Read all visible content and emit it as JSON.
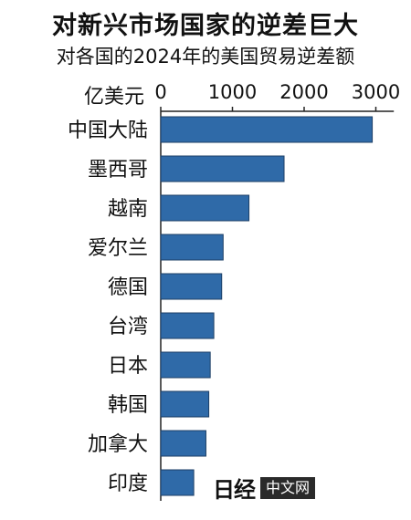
{
  "chart_data": {
    "type": "bar",
    "orientation": "horizontal",
    "title": "对新兴市场国家的逆差巨大",
    "subtitle": "对各国的2024年的美国贸易逆差额",
    "unit_label": "亿美元",
    "xlim": [
      0,
      3200
    ],
    "ticks": [
      0,
      1000,
      2000,
      3000
    ],
    "tick_labels": [
      "0",
      "1000",
      "2000",
      "3000"
    ],
    "categories": [
      "中国大陆",
      "墨西哥",
      "越南",
      "爱尔兰",
      "德国",
      "台湾",
      "日本",
      "韩国",
      "加拿大",
      "印度"
    ],
    "values": [
      2950,
      1720,
      1230,
      870,
      850,
      740,
      690,
      670,
      630,
      460
    ],
    "bar_color": "#2f6aa8",
    "grid": false
  },
  "logo": {
    "mark": "日经",
    "text": "中文网"
  }
}
